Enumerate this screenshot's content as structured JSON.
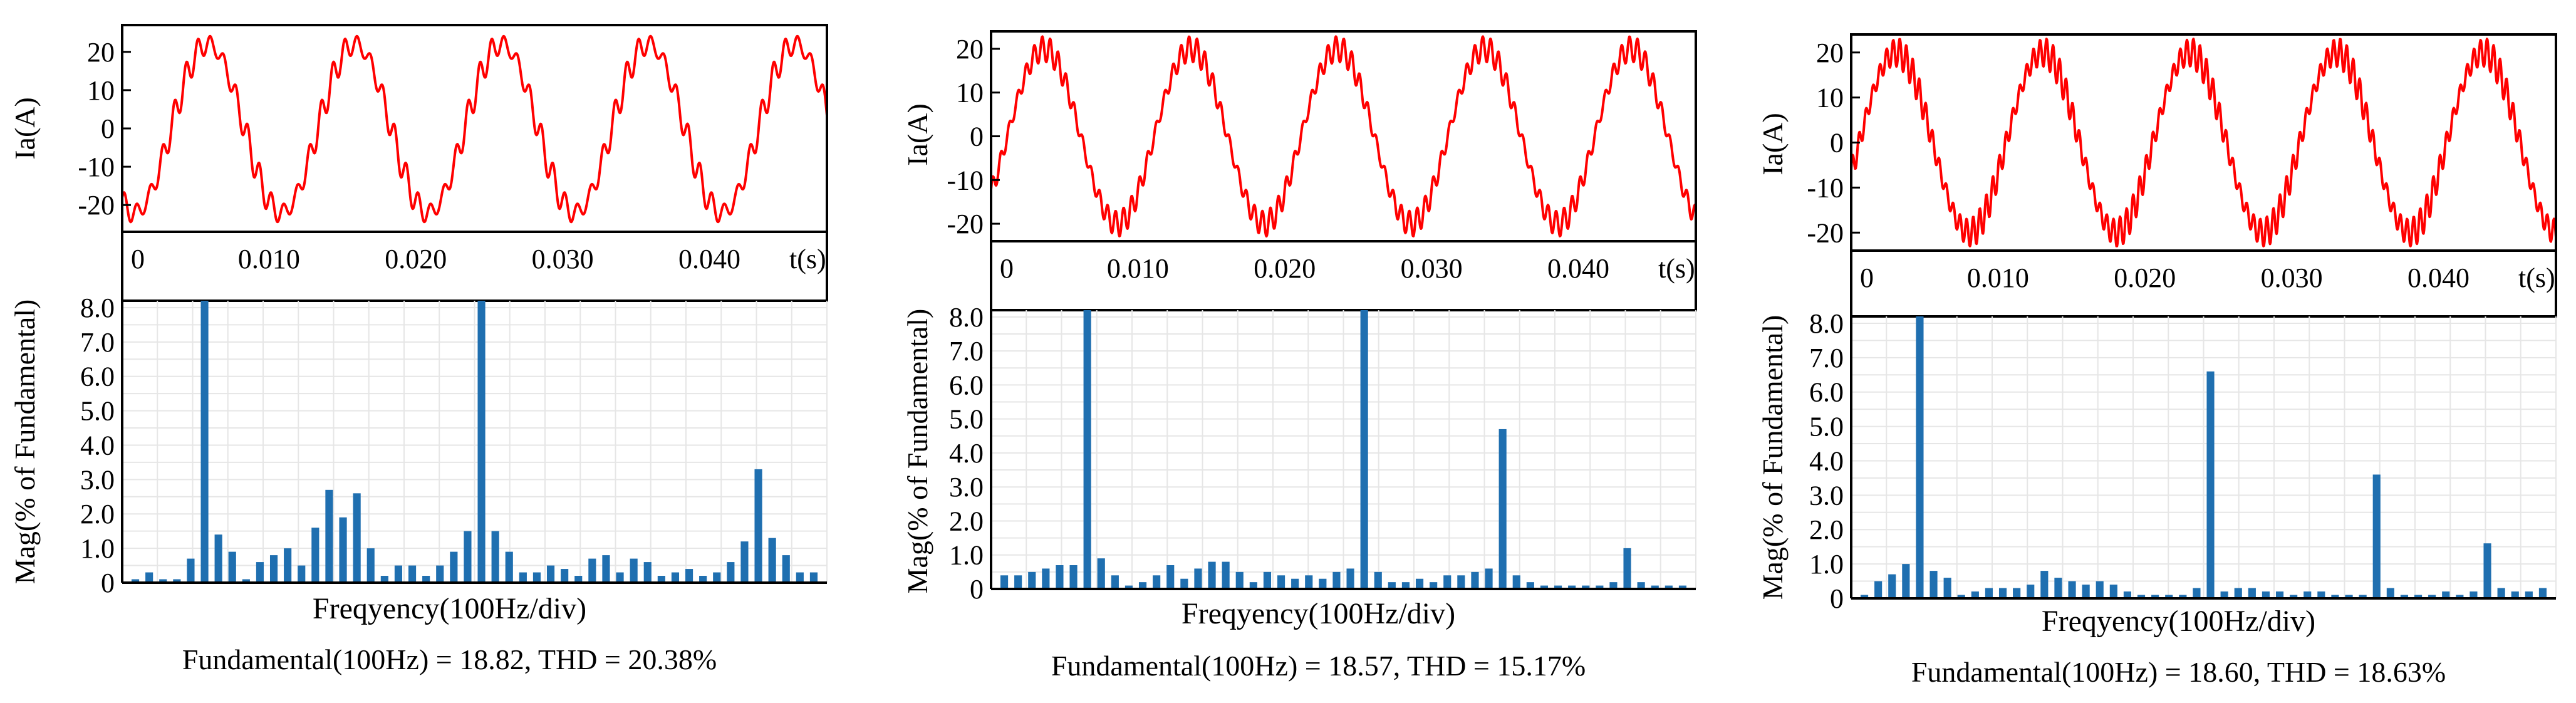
{
  "colors": {
    "wave": "#ff0000",
    "bar": "#1f6fb0",
    "grid": "#e6e6e6",
    "frame": "#000000"
  },
  "chart_data": [
    {
      "type": "line",
      "panel": "Left current waveform",
      "ylabel": "Ia(A)",
      "xlabel_unit": "t(s)",
      "ylim": [
        -27,
        27
      ],
      "xlim": [
        0,
        0.048
      ],
      "yticks": [
        "20",
        "10",
        "0",
        "-10",
        "-20"
      ],
      "ytick_values": [
        20,
        10,
        0,
        -10,
        -20
      ],
      "xticks": [
        "0",
        "0.010",
        "0.020",
        "0.030",
        "0.040"
      ],
      "xtick_values": [
        0,
        0.01,
        0.02,
        0.03,
        0.04
      ],
      "fundamental_hz": 100,
      "amplitude": 22,
      "phase_deg": -120,
      "ripple_amplitude": 3.0,
      "ripple_harmonic": 12
    },
    {
      "type": "bar",
      "panel": "Left harmonic spectrum",
      "ylabel": "Mag(% of Fundamental)",
      "xlabel": "Freqyency(100Hz/div)",
      "ylim": [
        0,
        8.2
      ],
      "yticks": [
        "8.0",
        "7.0",
        "6.0",
        "5.0",
        "4.0",
        "3.0",
        "2.0",
        "1.0",
        "0"
      ],
      "ytick_values": [
        8,
        7,
        6,
        5,
        4,
        3,
        2,
        1,
        0
      ],
      "values": [
        0.1,
        0.3,
        0.1,
        0.1,
        0.7,
        8.2,
        1.4,
        0.9,
        0.1,
        0.6,
        0.8,
        1.0,
        0.5,
        1.6,
        2.7,
        1.9,
        2.6,
        1.0,
        0.2,
        0.5,
        0.5,
        0.2,
        0.5,
        0.9,
        1.5,
        8.2,
        1.5,
        0.9,
        0.3,
        0.3,
        0.5,
        0.4,
        0.2,
        0.7,
        0.8,
        0.3,
        0.7,
        0.6,
        0.2,
        0.3,
        0.4,
        0.2,
        0.3,
        0.6,
        1.2,
        3.3,
        1.3,
        0.8,
        0.3,
        0.3
      ],
      "caption": "Fundamental(100Hz) = 18.82, THD = 20.38%"
    },
    {
      "type": "line",
      "panel": "Middle current waveform",
      "ylabel": "Ia(A)",
      "xlabel_unit": "t(s)",
      "ylim": [
        -24,
        24
      ],
      "xlim": [
        0,
        0.048
      ],
      "yticks": [
        "20",
        "10",
        "0",
        "-10",
        "-20"
      ],
      "ytick_values": [
        20,
        10,
        0,
        -10,
        -20
      ],
      "xticks": [
        "0",
        "0.010",
        "0.020",
        "0.030",
        "0.040"
      ],
      "xtick_values": [
        0,
        0.01,
        0.02,
        0.03,
        0.04
      ],
      "fundamental_hz": 100,
      "amplitude": 20,
      "phase_deg": -40,
      "ripple_amplitude": 2.2,
      "ripple_harmonic": 18
    },
    {
      "type": "bar",
      "panel": "Middle harmonic spectrum",
      "ylabel": "Mag(% of Fundamental)",
      "xlabel": "Freqyency(100Hz/div)",
      "ylim": [
        0,
        8.2
      ],
      "yticks": [
        "8.0",
        "7.0",
        "6.0",
        "5.0",
        "4.0",
        "3.0",
        "2.0",
        "1.0",
        "0"
      ],
      "ytick_values": [
        8,
        7,
        6,
        5,
        4,
        3,
        2,
        1,
        0
      ],
      "values": [
        0.4,
        0.4,
        0.5,
        0.6,
        0.7,
        0.7,
        8.2,
        0.9,
        0.4,
        0.1,
        0.2,
        0.4,
        0.7,
        0.3,
        0.6,
        0.8,
        0.8,
        0.5,
        0.2,
        0.5,
        0.4,
        0.3,
        0.4,
        0.3,
        0.5,
        0.6,
        8.2,
        0.5,
        0.2,
        0.2,
        0.3,
        0.2,
        0.4,
        0.4,
        0.5,
        0.6,
        4.7,
        0.4,
        0.2,
        0.1,
        0.1,
        0.1,
        0.1,
        0.1,
        0.2,
        1.2,
        0.2,
        0.1,
        0.1,
        0.1
      ],
      "caption": "Fundamental(100Hz) = 18.57, THD = 15.17%"
    },
    {
      "type": "line",
      "panel": "Right current waveform",
      "ylabel": "Ia(A)",
      "xlabel_unit": "t(s)",
      "ylim": [
        -24,
        24
      ],
      "xlim": [
        0,
        0.048
      ],
      "yticks": [
        "20",
        "10",
        "0",
        "-10",
        "-20"
      ],
      "ytick_values": [
        20,
        10,
        0,
        -10,
        -20
      ],
      "xticks": [
        "0",
        "0.010",
        "0.020",
        "0.030",
        "0.040"
      ],
      "xtick_values": [
        0,
        0.01,
        0.02,
        0.03,
        0.04
      ],
      "fundamental_hz": 100,
      "amplitude": 20,
      "phase_deg": -20,
      "ripple_amplitude": 2.6,
      "ripple_harmonic": 22
    },
    {
      "type": "bar",
      "panel": "Right harmonic spectrum",
      "ylabel": "Mag(% of Fundamental)",
      "xlabel": "Freqyency(100Hz/div)",
      "ylim": [
        0,
        8.2
      ],
      "yticks": [
        "8.0",
        "7.0",
        "6.0",
        "5.0",
        "4.0",
        "3.0",
        "2.0",
        "1.0",
        "0"
      ],
      "ytick_values": [
        8,
        7,
        6,
        5,
        4,
        3,
        2,
        1,
        0
      ],
      "values": [
        0.1,
        0.5,
        0.7,
        1.0,
        8.2,
        0.8,
        0.6,
        0.1,
        0.2,
        0.3,
        0.3,
        0.3,
        0.4,
        0.8,
        0.6,
        0.5,
        0.4,
        0.5,
        0.4,
        0.2,
        0.1,
        0.1,
        0.1,
        0.1,
        0.3,
        6.6,
        0.2,
        0.3,
        0.3,
        0.2,
        0.2,
        0.1,
        0.2,
        0.2,
        0.1,
        0.1,
        0.1,
        3.6,
        0.3,
        0.1,
        0.1,
        0.1,
        0.2,
        0.1,
        0.2,
        1.6,
        0.3,
        0.2,
        0.2,
        0.3
      ],
      "caption": "Fundamental(100Hz) = 18.60, THD = 18.63%"
    }
  ]
}
